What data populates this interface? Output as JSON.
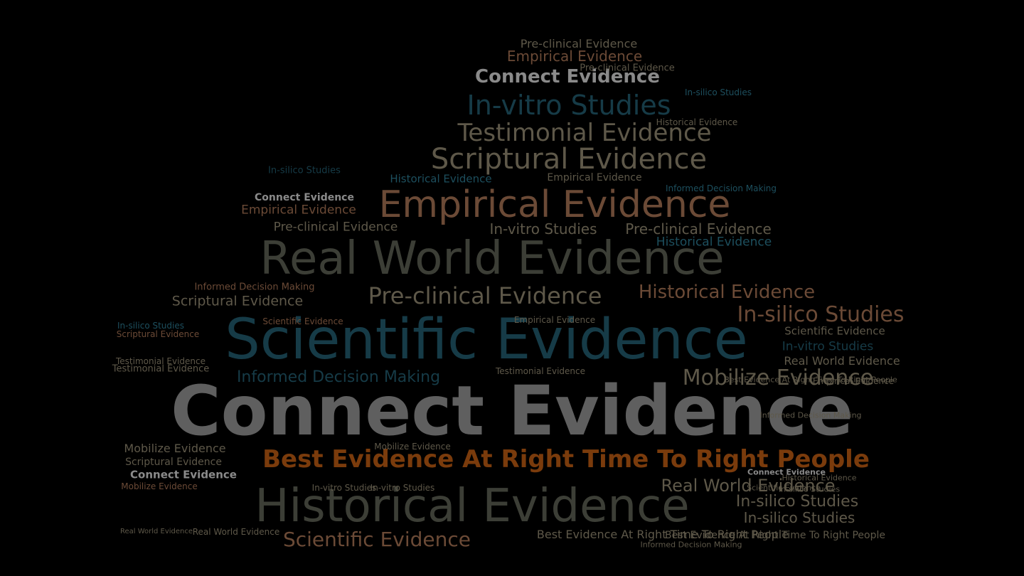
{
  "word_cloud": {
    "palette": {
      "gray": "#5f5f5f",
      "light": "#8a8a8a",
      "teal": "#163b47",
      "tealb": "#1d4f5e",
      "brown": "#6b4a36",
      "orange": "#7a3b0c",
      "olive": "#3c3e36",
      "tan": "#5e5849"
    },
    "words": [
      {
        "text": "Connect Evidence",
        "color": "gray"
      },
      {
        "text": "Scientific Evidence",
        "color": "teal"
      },
      {
        "text": "Real World Evidence",
        "color": "olive"
      },
      {
        "text": "Historical Evidence",
        "color": "olive"
      },
      {
        "text": "Best Evidence At Right Time To Right People",
        "color": "orange"
      },
      {
        "text": "Empirical Evidence",
        "color": "brown"
      },
      {
        "text": "Scriptural Evidence",
        "color": "tan"
      },
      {
        "text": "Testimonial Evidence",
        "color": "tan"
      },
      {
        "text": "In-vitro Studies",
        "color": "teal"
      },
      {
        "text": "Connect Evidence",
        "color": "light"
      },
      {
        "text": "Empirical Evidence",
        "color": "brown"
      },
      {
        "text": "Pre-clinical Evidence",
        "color": "tan"
      },
      {
        "text": "Pre-clinical Evidence",
        "color": "tan"
      },
      {
        "text": "Mobilize Evidence",
        "color": "tan"
      },
      {
        "text": "In-silico Studies",
        "color": "brown"
      },
      {
        "text": "Informed Decision Making",
        "color": "teal"
      },
      {
        "text": "Historical Evidence",
        "color": "brown"
      },
      {
        "text": "Scientific Evidence",
        "color": "brown"
      },
      {
        "text": "Real World Evidence",
        "color": "tan"
      },
      {
        "text": "In-silico Studies",
        "color": "tan"
      },
      {
        "text": "In-silico Studies",
        "color": "tan"
      },
      {
        "text": "Pre-clinical Evidence",
        "color": "tan"
      },
      {
        "text": "Empirical Evidence",
        "color": "brown"
      },
      {
        "text": "Pre-clinical Evidence",
        "color": "tan"
      },
      {
        "text": "Testimonial Evidence",
        "color": "tan"
      },
      {
        "text": "In-vitro Studies",
        "color": "tan"
      },
      {
        "text": "Historical Evidence",
        "color": "tealb"
      },
      {
        "text": "Scriptural Evidence",
        "color": "tan"
      },
      {
        "text": "In-vitro Studies",
        "color": "teal"
      },
      {
        "text": "Real World Evidence",
        "color": "tan"
      },
      {
        "text": "Best Evidence At Right Time To Right People",
        "color": "tan"
      },
      {
        "text": "Informed Decision Making",
        "color": "brown"
      },
      {
        "text": "Empirical Evidence",
        "color": "tan"
      },
      {
        "text": "Connect Evidence",
        "color": "light"
      },
      {
        "text": "Historical Evidence",
        "color": "tealb"
      },
      {
        "text": "In-silico Studies",
        "color": "teal"
      },
      {
        "text": "Scientific Evidence",
        "color": "tan"
      },
      {
        "text": "Testimonial Evidence",
        "color": "tan"
      },
      {
        "text": "Mobilize Evidence",
        "color": "tan"
      },
      {
        "text": "Connect Evidence",
        "color": "light"
      },
      {
        "text": "In-vitro Studies",
        "color": "tan"
      },
      {
        "text": "Real World Evidence",
        "color": "tan"
      },
      {
        "text": "Informed Decision Making",
        "color": "tan"
      },
      {
        "text": "Scriptural Evidence",
        "color": "tan"
      },
      {
        "text": "In-silico Studies",
        "color": "tealb"
      },
      {
        "text": "Informed Decision Making",
        "color": "tealb"
      },
      {
        "text": "Best Evidence At Right Time To Right People",
        "color": "tan"
      },
      {
        "text": "Historical Evidence",
        "color": "tan"
      },
      {
        "text": "Mobilize Evidence",
        "color": "brown"
      },
      {
        "text": "Scientific Evidence",
        "color": "brown"
      },
      {
        "text": "Empirical Evidence",
        "color": "tan"
      },
      {
        "text": "In-silico Studies",
        "color": "tealb"
      },
      {
        "text": "Scriptural Evidence",
        "color": "brown"
      },
      {
        "text": "Testimonial Evidence",
        "color": "tan"
      },
      {
        "text": "In-vitro Studies",
        "color": "tan"
      },
      {
        "text": "Connect Evidence",
        "color": "light"
      },
      {
        "text": "Real World Evidence",
        "color": "tan"
      },
      {
        "text": "Pre-clinical Evidence",
        "color": "tan"
      },
      {
        "text": "Mobilize Evidence",
        "color": "tan"
      },
      {
        "text": "Historical Evidence",
        "color": "tan"
      },
      {
        "text": "In-silico Studies",
        "color": "tan"
      },
      {
        "text": "Scientific Evidence",
        "color": "tan"
      },
      {
        "text": "Empirical Evidence",
        "color": "tan"
      },
      {
        "text": "Best Evidence At Right Time To Right People",
        "color": "tan"
      },
      {
        "text": "Informed Decision Making",
        "color": "tan"
      }
    ]
  }
}
